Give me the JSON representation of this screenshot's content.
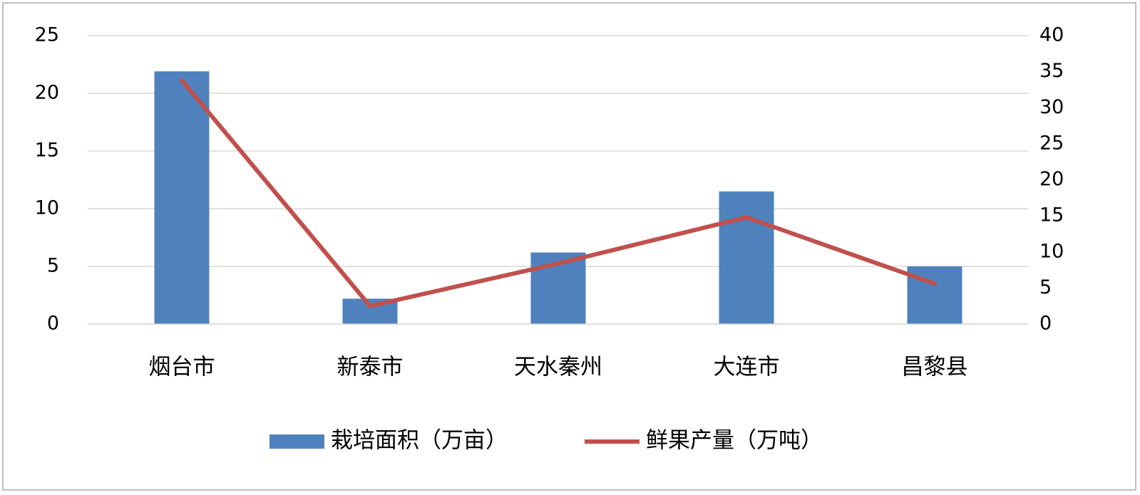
{
  "chart_data": {
    "type": "bar",
    "categories": [
      "烟台市",
      "新泰市",
      "天水秦州",
      "大连市",
      "昌黎县"
    ],
    "series": [
      {
        "name": "栽培面积（万亩）",
        "color": "#4f81bd",
        "type": "bar",
        "values": [
          21.9,
          2.2,
          6.2,
          11.5,
          5.0
        ]
      },
      {
        "name": "鲜果产量（万吨）",
        "color": "#c0504d",
        "type": "line",
        "axis": "y2",
        "values": [
          33.8,
          2.5,
          8.4,
          14.8,
          5.6
        ]
      }
    ],
    "ylim": [
      0,
      25
    ],
    "yticks": [
      0,
      5,
      10,
      15,
      20,
      25
    ],
    "y2lim": [
      0,
      40
    ],
    "y2ticks": [
      0,
      5,
      10,
      15,
      20,
      25,
      30,
      35,
      40
    ],
    "grid": true,
    "legend": "bottom"
  }
}
